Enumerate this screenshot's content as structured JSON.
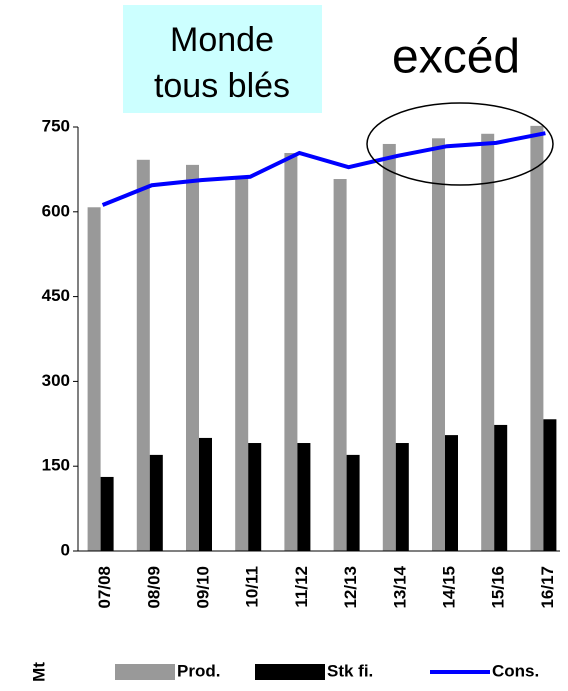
{
  "chart_data": {
    "type": "bar",
    "title_lines": [
      "Monde",
      "tous blés"
    ],
    "annotation": "excéd",
    "y_label": "Mt",
    "categories": [
      "07/08",
      "08/09",
      "09/10",
      "10/11",
      "11/12",
      "12/13",
      "13/14",
      "14/15",
      "15/16",
      "16/17"
    ],
    "series": [
      {
        "name": "Prod.",
        "color": "#999999",
        "kind": "bar",
        "values": [
          608,
          692,
          683,
          662,
          704,
          658,
          720,
          730,
          738,
          752
        ]
      },
      {
        "name": "Stk fi.",
        "color": "#000000",
        "kind": "bar",
        "values": [
          131,
          170,
          200,
          191,
          191,
          170,
          191,
          205,
          223,
          233
        ]
      },
      {
        "name": "Cons.",
        "color": "#0000ff",
        "kind": "line",
        "values": [
          612,
          647,
          656,
          662,
          704,
          679,
          699,
          716,
          722,
          739
        ]
      }
    ],
    "ylim": [
      0,
      750
    ],
    "yticks": [
      0,
      150,
      300,
      450,
      600,
      750
    ],
    "grid": false
  }
}
